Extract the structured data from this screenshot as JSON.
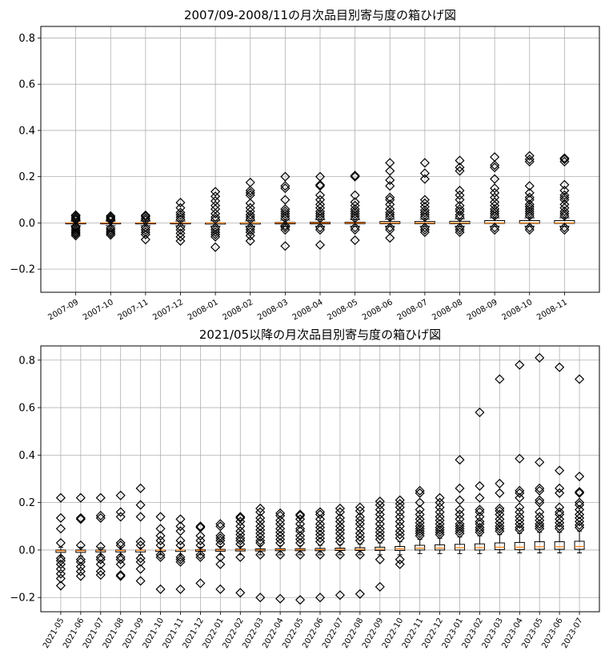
{
  "chart_data": [
    {
      "type": "box",
      "title": "2007/09-2008/11の月次品目別寄与度の箱ひげ図",
      "xlabel": "",
      "ylabel": "",
      "ylim": [
        -0.3,
        0.85
      ],
      "yticks": [
        -0.2,
        0.0,
        0.2,
        0.4,
        0.6,
        0.8
      ],
      "ytick_labels": [
        "−0.2",
        "0.0",
        "0.2",
        "0.4",
        "0.6",
        "0.8"
      ],
      "grid": true,
      "categories": [
        "2007-09",
        "2007-10",
        "2007-11",
        "2007-12",
        "2008-01",
        "2008-02",
        "2008-03",
        "2008-04",
        "2008-05",
        "2008-06",
        "2008-07",
        "2008-08",
        "2008-09",
        "2008-10",
        "2008-11"
      ],
      "boxes": [
        {
          "q1": -0.004,
          "median": 0.0,
          "q3": 0.0,
          "whisker_low": -0.012,
          "whisker_high": 0.008,
          "outliers": [
            -0.055,
            -0.048,
            -0.042,
            -0.035,
            -0.028,
            -0.02,
            -0.015,
            0.012,
            0.018,
            0.024,
            0.03,
            0.034
          ]
        },
        {
          "q1": -0.004,
          "median": 0.0,
          "q3": 0.0,
          "whisker_low": -0.012,
          "whisker_high": 0.008,
          "outliers": [
            -0.052,
            -0.045,
            -0.038,
            -0.03,
            -0.022,
            0.012,
            0.018,
            0.024,
            0.03
          ]
        },
        {
          "q1": -0.004,
          "median": 0.0,
          "q3": 0.0,
          "whisker_low": -0.012,
          "whisker_high": 0.008,
          "outliers": [
            -0.072,
            -0.05,
            -0.04,
            -0.03,
            -0.02,
            0.012,
            0.02,
            0.028,
            0.033
          ]
        },
        {
          "q1": -0.004,
          "median": 0.0,
          "q3": 0.0,
          "whisker_low": -0.012,
          "whisker_high": 0.008,
          "outliers": [
            -0.078,
            -0.06,
            -0.045,
            -0.03,
            -0.018,
            0.015,
            0.025,
            0.035,
            0.045,
            0.065,
            0.088
          ]
        },
        {
          "q1": -0.005,
          "median": 0.0,
          "q3": 0.0,
          "whisker_low": -0.014,
          "whisker_high": 0.009,
          "outliers": [
            -0.105,
            -0.06,
            -0.05,
            -0.04,
            -0.03,
            -0.02,
            0.015,
            0.025,
            0.04,
            0.06,
            0.075,
            0.095,
            0.115,
            0.135
          ]
        },
        {
          "q1": -0.005,
          "median": 0.0,
          "q3": 0.0,
          "whisker_low": -0.014,
          "whisker_high": 0.009,
          "outliers": [
            -0.078,
            -0.055,
            -0.04,
            -0.03,
            -0.02,
            0.015,
            0.025,
            0.035,
            0.05,
            0.065,
            0.085,
            0.12,
            0.13,
            0.14,
            0.175
          ]
        },
        {
          "q1": -0.004,
          "median": 0.0,
          "q3": 0.002,
          "whisker_low": -0.014,
          "whisker_high": 0.012,
          "outliers": [
            -0.1,
            -0.03,
            -0.02,
            -0.012,
            0.02,
            0.03,
            0.04,
            0.05,
            0.06,
            0.1,
            0.15,
            0.16,
            0.2
          ]
        },
        {
          "q1": -0.004,
          "median": 0.0,
          "q3": 0.003,
          "whisker_low": -0.014,
          "whisker_high": 0.014,
          "outliers": [
            -0.095,
            -0.03,
            -0.02,
            0.02,
            0.03,
            0.04,
            0.05,
            0.065,
            0.08,
            0.1,
            0.12,
            0.16,
            0.165,
            0.2
          ]
        },
        {
          "q1": -0.003,
          "median": 0.0,
          "q3": 0.003,
          "whisker_low": -0.014,
          "whisker_high": 0.014,
          "outliers": [
            -0.075,
            -0.03,
            -0.02,
            0.02,
            0.03,
            0.04,
            0.05,
            0.06,
            0.075,
            0.09,
            0.12,
            0.2,
            0.205
          ]
        },
        {
          "q1": -0.003,
          "median": 0.0,
          "q3": 0.006,
          "whisker_low": -0.014,
          "whisker_high": 0.016,
          "outliers": [
            -0.065,
            -0.03,
            -0.02,
            0.025,
            0.035,
            0.045,
            0.06,
            0.08,
            0.1,
            0.11,
            0.16,
            0.185,
            0.225,
            0.26
          ]
        },
        {
          "q1": -0.003,
          "median": 0.0,
          "q3": 0.006,
          "whisker_low": -0.014,
          "whisker_high": 0.016,
          "outliers": [
            -0.04,
            -0.03,
            -0.02,
            0.025,
            0.035,
            0.045,
            0.055,
            0.07,
            0.085,
            0.1,
            0.19,
            0.215,
            0.26
          ]
        },
        {
          "q1": -0.003,
          "median": 0.0,
          "q3": 0.007,
          "whisker_low": -0.014,
          "whisker_high": 0.018,
          "outliers": [
            -0.04,
            -0.03,
            -0.02,
            0.025,
            0.035,
            0.05,
            0.06,
            0.075,
            0.1,
            0.12,
            0.14,
            0.225,
            0.24,
            0.27
          ]
        },
        {
          "q1": -0.002,
          "median": 0.0,
          "q3": 0.01,
          "whisker_low": -0.014,
          "whisker_high": 0.022,
          "outliers": [
            -0.03,
            -0.02,
            0.03,
            0.04,
            0.05,
            0.06,
            0.075,
            0.09,
            0.11,
            0.13,
            0.15,
            0.19,
            0.24,
            0.25,
            0.285
          ]
        },
        {
          "q1": -0.002,
          "median": 0.0,
          "q3": 0.01,
          "whisker_low": -0.014,
          "whisker_high": 0.022,
          "outliers": [
            -0.03,
            -0.02,
            0.03,
            0.04,
            0.05,
            0.06,
            0.07,
            0.08,
            0.1,
            0.11,
            0.13,
            0.16,
            0.265,
            0.275,
            0.29
          ]
        },
        {
          "q1": -0.002,
          "median": 0.0,
          "q3": 0.01,
          "whisker_low": -0.014,
          "whisker_high": 0.022,
          "outliers": [
            -0.03,
            -0.02,
            0.03,
            0.04,
            0.05,
            0.065,
            0.08,
            0.1,
            0.11,
            0.12,
            0.14,
            0.165,
            0.265,
            0.275,
            0.28
          ]
        }
      ]
    },
    {
      "type": "box",
      "title": "2021/05以降の月次品目別寄与度の箱ひげ図",
      "xlabel": "",
      "ylabel": "",
      "ylim": [
        -0.26,
        0.86
      ],
      "yticks": [
        -0.2,
        0.0,
        0.2,
        0.4,
        0.6,
        0.8
      ],
      "ytick_labels": [
        "−0.2",
        "0.0",
        "0.2",
        "0.4",
        "0.6",
        "0.8"
      ],
      "grid": true,
      "categories": [
        "2021-05",
        "2021-06",
        "2021-07",
        "2021-08",
        "2021-09",
        "2021-10",
        "2021-11",
        "2021-12",
        "2022-01",
        "2022-02",
        "2022-03",
        "2022-04",
        "2022-05",
        "2022-06",
        "2022-07",
        "2022-08",
        "2022-09",
        "2022-10",
        "2022-11",
        "2022-12",
        "2023-01",
        "2023-02",
        "2023-03",
        "2023-04",
        "2023-05",
        "2023-06",
        "2023-07"
      ],
      "boxes": [
        {
          "q1": -0.01,
          "median": -0.003,
          "q3": 0.0,
          "whisker_low": -0.025,
          "whisker_high": 0.012,
          "outliers": [
            -0.15,
            -0.12,
            -0.1,
            -0.08,
            -0.06,
            -0.045,
            -0.035,
            0.03,
            0.09,
            0.135,
            0.22
          ]
        },
        {
          "q1": -0.01,
          "median": -0.003,
          "q3": 0.0,
          "whisker_low": -0.025,
          "whisker_high": 0.012,
          "outliers": [
            -0.11,
            -0.09,
            -0.07,
            -0.05,
            -0.04,
            0.02,
            0.13,
            0.135,
            0.22
          ]
        },
        {
          "q1": -0.008,
          "median": -0.002,
          "q3": 0.0,
          "whisker_low": -0.02,
          "whisker_high": 0.01,
          "outliers": [
            -0.105,
            -0.09,
            -0.06,
            -0.04,
            -0.03,
            0.015,
            0.135,
            0.145,
            0.22
          ]
        },
        {
          "q1": -0.008,
          "median": -0.002,
          "q3": 0.0,
          "whisker_low": -0.02,
          "whisker_high": 0.01,
          "outliers": [
            -0.11,
            -0.105,
            -0.06,
            -0.04,
            -0.03,
            0.02,
            0.03,
            0.14,
            0.16,
            0.23
          ]
        },
        {
          "q1": -0.008,
          "median": -0.001,
          "q3": 0.0,
          "whisker_low": -0.02,
          "whisker_high": 0.01,
          "outliers": [
            -0.13,
            -0.08,
            -0.05,
            -0.035,
            0.02,
            0.035,
            0.14,
            0.19,
            0.26
          ]
        },
        {
          "q1": -0.006,
          "median": 0.0,
          "q3": 0.0,
          "whisker_low": -0.02,
          "whisker_high": 0.01,
          "outliers": [
            -0.165,
            -0.03,
            -0.02,
            0.02,
            0.04,
            0.06,
            0.09,
            0.14
          ]
        },
        {
          "q1": -0.006,
          "median": 0.0,
          "q3": 0.0,
          "whisker_low": -0.02,
          "whisker_high": 0.01,
          "outliers": [
            -0.165,
            -0.05,
            -0.04,
            -0.03,
            0.02,
            0.04,
            0.08,
            0.1,
            0.13
          ]
        },
        {
          "q1": -0.005,
          "median": 0.0,
          "q3": 0.002,
          "whisker_low": -0.02,
          "whisker_high": 0.012,
          "outliers": [
            -0.14,
            -0.03,
            -0.02,
            0.02,
            0.04,
            0.06,
            0.095,
            0.1
          ]
        },
        {
          "q1": -0.005,
          "median": 0.0,
          "q3": 0.003,
          "whisker_low": -0.02,
          "whisker_high": 0.015,
          "outliers": [
            -0.165,
            -0.06,
            -0.03,
            0.025,
            0.04,
            0.05,
            0.06,
            0.1,
            0.11
          ]
        },
        {
          "q1": -0.004,
          "median": 0.001,
          "q3": 0.004,
          "whisker_low": -0.02,
          "whisker_high": 0.016,
          "outliers": [
            -0.18,
            -0.03,
            0.025,
            0.04,
            0.05,
            0.065,
            0.08,
            0.1,
            0.12,
            0.135,
            0.14
          ]
        },
        {
          "q1": -0.004,
          "median": 0.001,
          "q3": 0.005,
          "whisker_low": -0.02,
          "whisker_high": 0.018,
          "outliers": [
            -0.2,
            -0.02,
            0.03,
            0.04,
            0.055,
            0.07,
            0.085,
            0.1,
            0.12,
            0.135,
            0.16,
            0.175
          ]
        },
        {
          "q1": -0.003,
          "median": 0.002,
          "q3": 0.006,
          "whisker_low": -0.02,
          "whisker_high": 0.018,
          "outliers": [
            -0.205,
            -0.02,
            0.03,
            0.045,
            0.06,
            0.075,
            0.09,
            0.11,
            0.125,
            0.145,
            0.155
          ]
        },
        {
          "q1": -0.003,
          "median": 0.002,
          "q3": 0.006,
          "whisker_low": -0.02,
          "whisker_high": 0.018,
          "outliers": [
            -0.21,
            -0.02,
            0.03,
            0.045,
            0.06,
            0.08,
            0.09,
            0.11,
            0.13,
            0.145,
            0.15
          ]
        },
        {
          "q1": -0.003,
          "median": 0.002,
          "q3": 0.007,
          "whisker_low": -0.02,
          "whisker_high": 0.02,
          "outliers": [
            -0.2,
            -0.02,
            0.035,
            0.05,
            0.065,
            0.08,
            0.095,
            0.11,
            0.13,
            0.15,
            0.16
          ]
        },
        {
          "q1": -0.002,
          "median": 0.003,
          "q3": 0.008,
          "whisker_low": -0.02,
          "whisker_high": 0.022,
          "outliers": [
            -0.19,
            -0.02,
            0.035,
            0.05,
            0.07,
            0.085,
            0.1,
            0.12,
            0.135,
            0.16,
            0.175
          ]
        },
        {
          "q1": -0.002,
          "median": 0.003,
          "q3": 0.01,
          "whisker_low": -0.02,
          "whisker_high": 0.025,
          "outliers": [
            -0.185,
            -0.02,
            0.04,
            0.055,
            0.07,
            0.09,
            0.11,
            0.125,
            0.14,
            0.165,
            0.18
          ]
        },
        {
          "q1": -0.002,
          "median": 0.004,
          "q3": 0.012,
          "whisker_low": -0.02,
          "whisker_high": 0.03,
          "outliers": [
            -0.155,
            -0.04,
            0.045,
            0.06,
            0.075,
            0.09,
            0.11,
            0.13,
            0.15,
            0.17,
            0.19,
            0.205
          ]
        },
        {
          "q1": -0.002,
          "median": 0.005,
          "q3": 0.015,
          "whisker_low": -0.02,
          "whisker_high": 0.035,
          "outliers": [
            -0.06,
            -0.04,
            0.05,
            0.065,
            0.08,
            0.1,
            0.12,
            0.14,
            0.16,
            0.18,
            0.195,
            0.21
          ]
        },
        {
          "q1": 0.0,
          "median": 0.008,
          "q3": 0.02,
          "whisker_low": -0.015,
          "whisker_high": 0.045,
          "outliers": [
            0.06,
            0.07,
            0.08,
            0.09,
            0.1,
            0.115,
            0.13,
            0.15,
            0.17,
            0.2,
            0.24,
            0.25
          ]
        },
        {
          "q1": 0.0,
          "median": 0.008,
          "q3": 0.022,
          "whisker_low": -0.015,
          "whisker_high": 0.05,
          "outliers": [
            0.065,
            0.075,
            0.085,
            0.095,
            0.11,
            0.125,
            0.14,
            0.16,
            0.18,
            0.2,
            0.22
          ]
        },
        {
          "q1": 0.0,
          "median": 0.01,
          "q3": 0.024,
          "whisker_low": -0.015,
          "whisker_high": 0.055,
          "outliers": [
            0.07,
            0.08,
            0.09,
            0.1,
            0.11,
            0.13,
            0.15,
            0.17,
            0.21,
            0.26,
            0.38
          ]
        },
        {
          "q1": 0.0,
          "median": 0.01,
          "q3": 0.026,
          "whisker_low": -0.015,
          "whisker_high": 0.06,
          "outliers": [
            0.075,
            0.085,
            0.095,
            0.11,
            0.12,
            0.14,
            0.16,
            0.17,
            0.22,
            0.27,
            0.58
          ]
        },
        {
          "q1": 0.002,
          "median": 0.012,
          "q3": 0.03,
          "whisker_low": -0.012,
          "whisker_high": 0.065,
          "outliers": [
            0.08,
            0.09,
            0.1,
            0.115,
            0.13,
            0.15,
            0.165,
            0.175,
            0.24,
            0.28,
            0.72
          ]
        },
        {
          "q1": 0.002,
          "median": 0.012,
          "q3": 0.032,
          "whisker_low": -0.012,
          "whisker_high": 0.07,
          "outliers": [
            0.085,
            0.095,
            0.11,
            0.125,
            0.14,
            0.16,
            0.18,
            0.22,
            0.24,
            0.25,
            0.385,
            0.78
          ]
        },
        {
          "q1": 0.003,
          "median": 0.014,
          "q3": 0.035,
          "whisker_low": -0.012,
          "whisker_high": 0.075,
          "outliers": [
            0.09,
            0.1,
            0.11,
            0.125,
            0.14,
            0.16,
            0.2,
            0.21,
            0.25,
            0.26,
            0.37,
            0.81
          ]
        },
        {
          "q1": 0.003,
          "median": 0.014,
          "q3": 0.035,
          "whisker_low": -0.012,
          "whisker_high": 0.075,
          "outliers": [
            0.09,
            0.1,
            0.115,
            0.13,
            0.15,
            0.16,
            0.18,
            0.24,
            0.26,
            0.335,
            0.77
          ]
        },
        {
          "q1": 0.003,
          "median": 0.015,
          "q3": 0.037,
          "whisker_low": -0.012,
          "whisker_high": 0.08,
          "outliers": [
            0.095,
            0.105,
            0.12,
            0.135,
            0.15,
            0.17,
            0.19,
            0.2,
            0.24,
            0.245,
            0.31,
            0.72
          ]
        }
      ]
    }
  ],
  "colors": {
    "box_edge": "#000000",
    "median": "#ff7f0e",
    "flier_edge": "#000000",
    "grid": "#b0b0b0"
  }
}
